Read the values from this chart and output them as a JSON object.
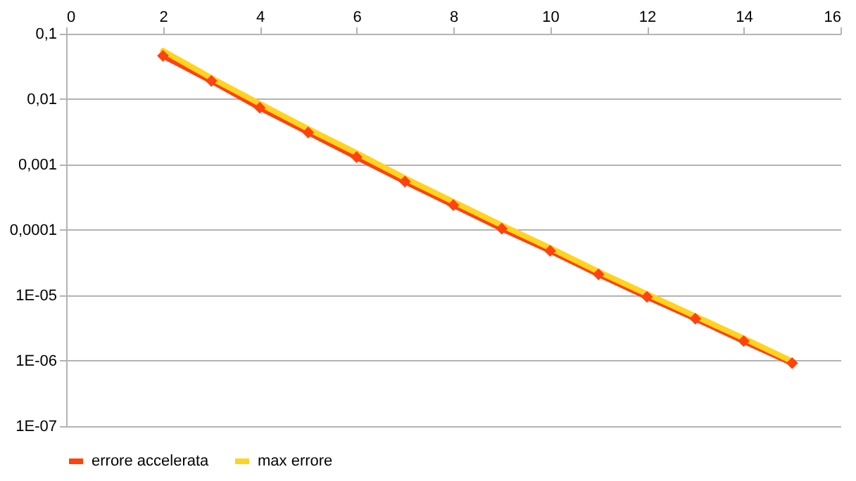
{
  "chart_data": {
    "type": "line",
    "x": [
      2,
      3,
      4,
      5,
      6,
      7,
      8,
      9,
      10,
      11,
      12,
      13,
      14,
      15
    ],
    "series": [
      {
        "name": "errore accelerata",
        "color": "#ff420e",
        "marker": "diamond",
        "values": [
          0.046,
          0.019,
          0.0074,
          0.0031,
          0.0013,
          0.00055,
          0.00024,
          0.000105,
          4.8e-05,
          2.1e-05,
          9.5e-06,
          4.4e-06,
          2e-06,
          9.2e-07
        ]
      },
      {
        "name": "max errore",
        "color": "#ffd320",
        "marker": "none",
        "values": [
          0.055,
          0.021,
          0.0085,
          0.0035,
          0.0015,
          0.00062,
          0.00027,
          0.000118,
          5.3e-05,
          2.3e-05,
          1.05e-05,
          4.8e-06,
          2.2e-06,
          9.8e-07
        ]
      }
    ],
    "xlim": [
      0,
      16
    ],
    "xticks": [
      0,
      2,
      4,
      6,
      8,
      10,
      12,
      14,
      16
    ],
    "ylim": [
      1e-07,
      0.1
    ],
    "yticks": [
      {
        "value": 0.1,
        "label": "0,1"
      },
      {
        "value": 0.01,
        "label": "0,01"
      },
      {
        "value": 0.001,
        "label": "0,001"
      },
      {
        "value": 0.0001,
        "label": "0,0001"
      },
      {
        "value": 1e-05,
        "label": "1E-05"
      },
      {
        "value": 1e-06,
        "label": "1E-06"
      },
      {
        "value": 1e-07,
        "label": "1E-07"
      }
    ],
    "log": "y",
    "grid": "y",
    "legend": "bottom",
    "line_style": "solid"
  }
}
